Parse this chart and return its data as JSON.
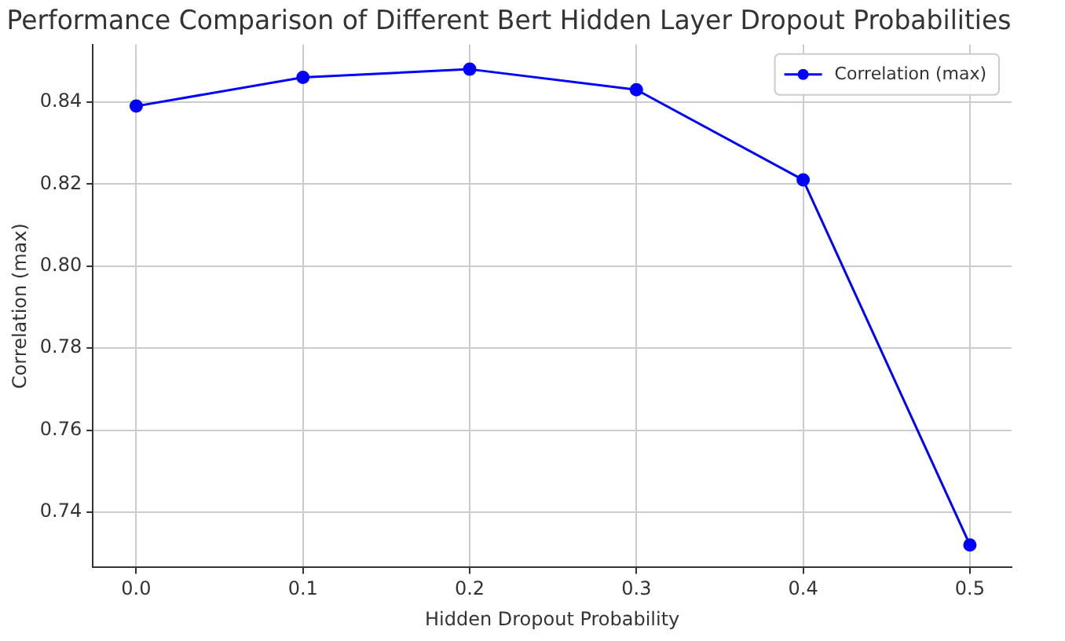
{
  "chart_data": {
    "type": "line",
    "title": "Performance Comparison of Different Bert Hidden Layer Dropout Probabilities",
    "xlabel": "Hidden Dropout Probability",
    "ylabel": "Correlation (max)",
    "x": [
      0.0,
      0.1,
      0.2,
      0.3,
      0.4,
      0.5
    ],
    "series": [
      {
        "name": "Correlation (max)",
        "color": "#0000ff",
        "values": [
          0.839,
          0.846,
          0.848,
          0.843,
          0.821,
          0.732
        ]
      }
    ],
    "xlim": [
      -0.026,
      0.525
    ],
    "xticks": [
      {
        "value": 0,
        "label": "0.0"
      },
      {
        "value": 0.1,
        "label": "0.1"
      },
      {
        "value": 0.2,
        "label": "0.2"
      },
      {
        "value": 0.3,
        "label": "0.3"
      },
      {
        "value": 0.4,
        "label": "0.4"
      },
      {
        "value": 0.5,
        "label": "0.5"
      }
    ],
    "ylim": [
      0.7265,
      0.854
    ],
    "yticks": [
      {
        "value": 0.74,
        "label": "0.74"
      },
      {
        "value": 0.76,
        "label": "0.76"
      },
      {
        "value": 0.78,
        "label": "0.78"
      },
      {
        "value": 0.8,
        "label": "0.80"
      },
      {
        "value": 0.82,
        "label": "0.82"
      },
      {
        "value": 0.84,
        "label": "0.84"
      }
    ],
    "grid": true,
    "legend": "top right",
    "marker": "circle",
    "line_style": "solid"
  }
}
